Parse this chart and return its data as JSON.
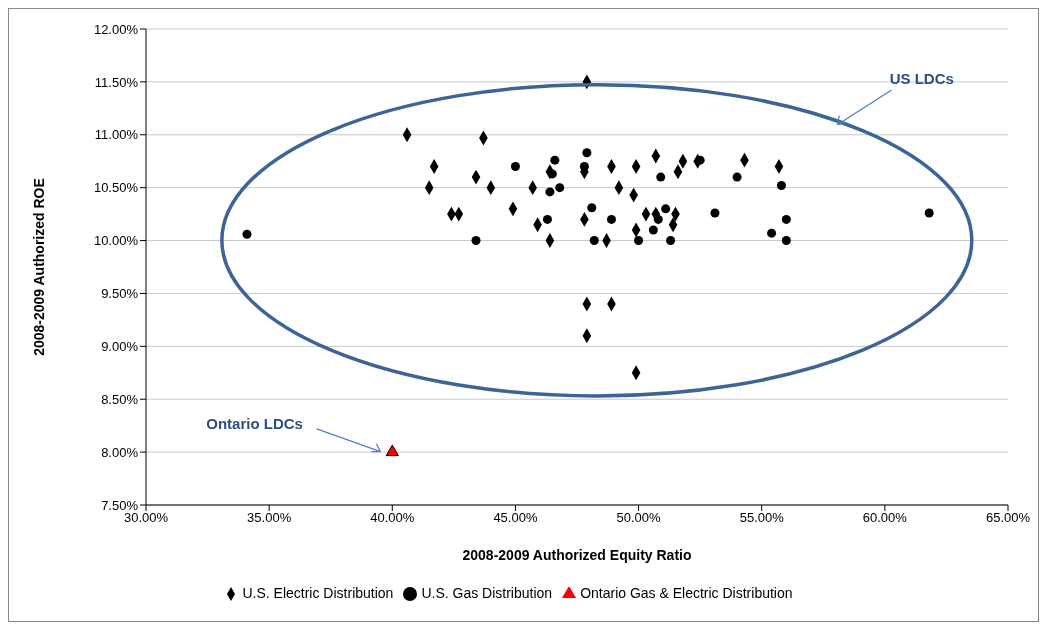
{
  "chart_data": {
    "type": "scatter",
    "xlabel": "2008-2009 Authorized Equity Ratio",
    "ylabel": "2008-2009 Authorized ROE",
    "xlim": [
      30,
      65
    ],
    "ylim": [
      7.5,
      12
    ],
    "xticks": [
      {
        "value": 30,
        "label": "30.00%"
      },
      {
        "value": 35,
        "label": "35.00%"
      },
      {
        "value": 40,
        "label": "40.00%"
      },
      {
        "value": 45,
        "label": "45.00%"
      },
      {
        "value": 50,
        "label": "50.00%"
      },
      {
        "value": 55,
        "label": "55.00%"
      },
      {
        "value": 60,
        "label": "60.00%"
      },
      {
        "value": 65,
        "label": "65.00%"
      }
    ],
    "yticks": [
      {
        "value": 7.5,
        "label": "7.50%"
      },
      {
        "value": 8,
        "label": "8.00%"
      },
      {
        "value": 8.5,
        "label": "8.50%"
      },
      {
        "value": 9,
        "label": "9.00%"
      },
      {
        "value": 9.5,
        "label": "9.50%"
      },
      {
        "value": 10,
        "label": "10.00%"
      },
      {
        "value": 10.5,
        "label": "10.50%"
      },
      {
        "value": 11,
        "label": "11.00%"
      },
      {
        "value": 11.5,
        "label": "11.50%"
      },
      {
        "value": 12,
        "label": "12.00%"
      }
    ],
    "grid": "y",
    "legend": "bottom",
    "annotations": [
      "US LDCs",
      "Ontario LDCs"
    ],
    "series": [
      {
        "name": "U.S. Electric Distribution",
        "color": "#000000",
        "marker": "diamond",
        "x": [
          40.6,
          41.7,
          41.5,
          43.4,
          43.7,
          44.0,
          42.4,
          42.7,
          44.9,
          45.7,
          45.9,
          46.4,
          46.4,
          47.9,
          47.8,
          47.8,
          47.9,
          47.9,
          48.9,
          48.9,
          49.2,
          48.7,
          49.9,
          49.8,
          49.9,
          49.9,
          50.7,
          50.7,
          50.3,
          51.5,
          51.6,
          51.8,
          52.4,
          51.4,
          54.3,
          55.7
        ],
        "values": [
          11.0,
          10.7,
          10.5,
          10.6,
          10.97,
          10.5,
          10.25,
          10.25,
          10.3,
          10.5,
          10.15,
          10.65,
          10.0,
          11.5,
          10.65,
          10.2,
          9.4,
          9.1,
          9.4,
          10.7,
          10.5,
          10.0,
          10.7,
          10.43,
          10.1,
          8.75,
          10.8,
          10.25,
          10.25,
          10.25,
          10.65,
          10.75,
          10.75,
          10.15,
          10.76,
          10.7
        ]
      },
      {
        "name": "U.S. Gas Distribution",
        "color": "#000000",
        "marker": "circle",
        "x": [
          34.1,
          43.4,
          45.0,
          46.6,
          46.5,
          46.3,
          46.8,
          46.4,
          47.9,
          47.8,
          48.1,
          48.2,
          48.9,
          50.0,
          50.9,
          51.1,
          50.6,
          51.3,
          50.8,
          53.1,
          52.5,
          54.0,
          55.4,
          55.8,
          56.0,
          56.0,
          61.8
        ],
        "values": [
          10.06,
          10.0,
          10.7,
          10.76,
          10.63,
          10.2,
          10.5,
          10.46,
          10.83,
          10.7,
          10.31,
          10.0,
          10.2,
          10.0,
          10.6,
          10.3,
          10.1,
          10.0,
          10.2,
          10.26,
          10.76,
          10.6,
          10.07,
          10.52,
          10.2,
          10.0,
          10.26
        ]
      },
      {
        "name": "Ontario Gas & Electric Distribution",
        "color": "#ff0000",
        "marker": "triangle",
        "x": [
          40.0
        ],
        "values": [
          8.0
        ]
      }
    ]
  }
}
